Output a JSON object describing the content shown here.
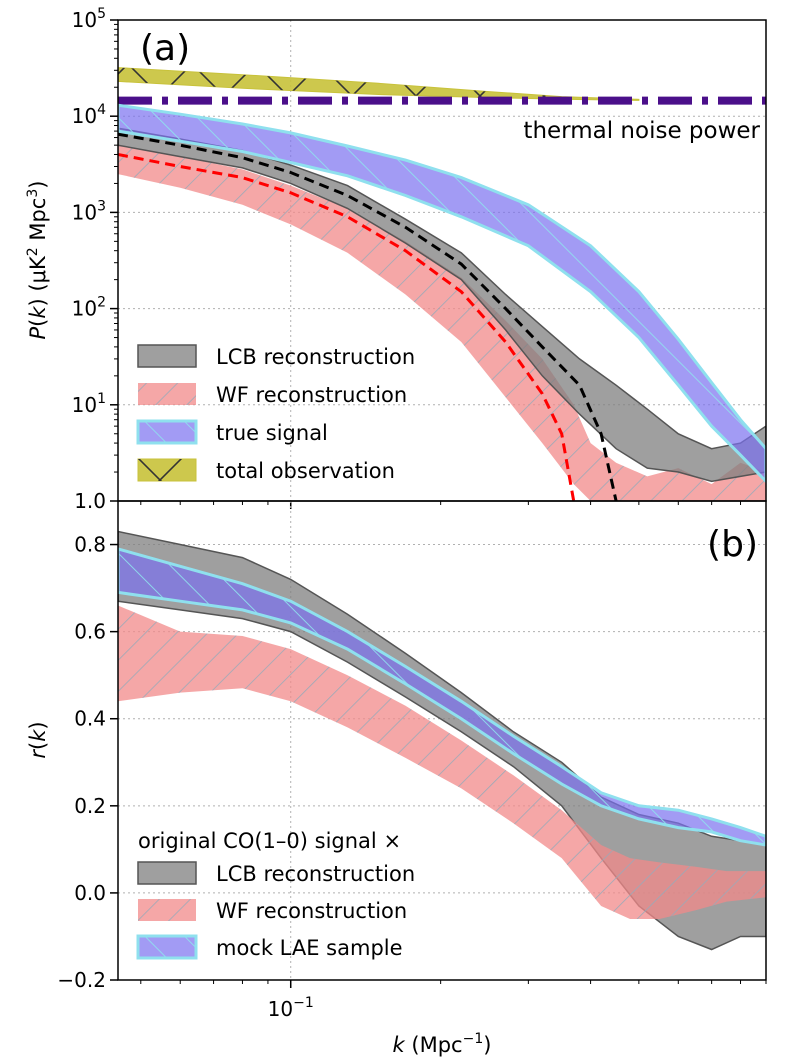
{
  "chart_data": [
    {
      "panel": "(a)",
      "type": "area",
      "ylabel": "P(k) (μK² Mpc³)",
      "ylabel_parts": {
        "italic": "P",
        "k": "k",
        "pre": " (μK",
        "sup1": "2",
        "mid": " Mpc",
        "sup2": "3",
        "post": ")"
      },
      "yscale": "log",
      "ylim": [
        1.0,
        100000
      ],
      "xscale": "log",
      "xlim": [
        0.045,
        0.9
      ],
      "yticks": [
        {
          "value": 1,
          "label": "1.0"
        },
        {
          "value": 10,
          "base": "10",
          "exp": "1"
        },
        {
          "value": 100,
          "base": "10",
          "exp": "2"
        },
        {
          "value": 1000,
          "base": "10",
          "exp": "3"
        },
        {
          "value": 10000,
          "base": "10",
          "exp": "4"
        },
        {
          "value": 100000,
          "base": "10",
          "exp": "5"
        }
      ],
      "annotation": "thermal noise power",
      "noise_level": 14500,
      "legend": [
        {
          "label": "LCB reconstruction",
          "style": "gray"
        },
        {
          "label": "WF reconstruction",
          "style": "red"
        },
        {
          "label": "true signal",
          "style": "blue"
        },
        {
          "label": "total observation",
          "style": "olive"
        }
      ],
      "series": [
        {
          "name": "total observation",
          "k": [
            0.045,
            0.08,
            0.15,
            0.25,
            0.35,
            0.5
          ],
          "lower": [
            23000,
            19500,
            16800,
            15600,
            15000,
            14600
          ],
          "upper": [
            32000,
            27000,
            22000,
            18000,
            16000,
            15000
          ]
        },
        {
          "name": "true signal",
          "k": [
            0.045,
            0.06,
            0.08,
            0.1,
            0.13,
            0.17,
            0.22,
            0.3,
            0.4,
            0.5,
            0.6,
            0.7,
            0.8,
            0.9
          ],
          "lower": [
            7000,
            5500,
            4300,
            3300,
            2400,
            1500,
            900,
            450,
            150,
            50,
            16,
            6,
            3,
            1.6
          ],
          "upper": [
            13000,
            10500,
            8300,
            6700,
            4900,
            3500,
            2300,
            1200,
            450,
            150,
            48,
            17,
            7,
            3.5
          ]
        },
        {
          "name": "LCB reconstruction",
          "k": [
            0.045,
            0.06,
            0.08,
            0.1,
            0.13,
            0.17,
            0.22,
            0.27,
            0.32,
            0.38,
            0.45,
            0.52,
            0.6,
            0.7,
            0.8,
            0.9
          ],
          "lower": [
            5000,
            3800,
            2900,
            2000,
            1100,
            480,
            200,
            60,
            20,
            8,
            3.5,
            2.2,
            2,
            1.6,
            1.8,
            2
          ],
          "upper": [
            7500,
            5800,
            4400,
            3100,
            1900,
            850,
            380,
            140,
            65,
            30,
            16,
            9,
            5,
            3.5,
            4,
            6
          ]
        },
        {
          "name": "LCB median",
          "k": [
            0.045,
            0.06,
            0.08,
            0.1,
            0.13,
            0.17,
            0.22,
            0.27,
            0.32,
            0.38,
            0.42,
            0.45
          ],
          "values": [
            6500,
            5000,
            3700,
            2600,
            1500,
            700,
            290,
            100,
            40,
            16,
            5,
            1
          ]
        },
        {
          "name": "WF reconstruction",
          "k": [
            0.045,
            0.06,
            0.08,
            0.1,
            0.13,
            0.17,
            0.22,
            0.27,
            0.32,
            0.37,
            0.4,
            0.45,
            0.52,
            0.6,
            0.7,
            0.8,
            0.9
          ],
          "lower": [
            2500,
            1800,
            1200,
            750,
            380,
            140,
            45,
            12,
            4,
            1.5,
            1,
            1,
            1,
            1,
            1,
            1,
            1
          ],
          "upper": [
            5000,
            3800,
            2800,
            1900,
            1100,
            500,
            210,
            75,
            30,
            10,
            4,
            2.5,
            1.8,
            2.2,
            1.5,
            2.5,
            2
          ]
        },
        {
          "name": "WF median",
          "k": [
            0.045,
            0.06,
            0.08,
            0.1,
            0.13,
            0.17,
            0.22,
            0.27,
            0.32,
            0.35,
            0.37
          ],
          "values": [
            4000,
            3000,
            2300,
            1600,
            900,
            400,
            150,
            45,
            13,
            5,
            1
          ]
        }
      ]
    },
    {
      "panel": "(b)",
      "type": "area",
      "ylabel": "r(k)",
      "xlabel": "k (Mpc⁻¹)",
      "xlabel_parts": {
        "italic": "k",
        "pre": " (Mpc",
        "sup": "−1",
        "post": ")"
      },
      "xscale": "log",
      "xlim": [
        0.045,
        0.9
      ],
      "ylim": [
        -0.2,
        0.9
      ],
      "yticks": [
        {
          "value": -0.2,
          "label": "−0.2"
        },
        {
          "value": 0.0,
          "label": "0.0"
        },
        {
          "value": 0.2,
          "label": "0.2"
        },
        {
          "value": 0.4,
          "label": "0.4"
        },
        {
          "value": 0.6,
          "label": "0.6"
        },
        {
          "value": 0.8,
          "label": "0.8"
        }
      ],
      "xticks": [
        {
          "value": 0.1,
          "base": "10",
          "exp": "−1"
        }
      ],
      "legend_title": "original CO(1–0) signal ×",
      "legend": [
        {
          "label": "LCB reconstruction",
          "style": "gray"
        },
        {
          "label": "WF reconstruction",
          "style": "red"
        },
        {
          "label": "mock LAE sample",
          "style": "blue"
        }
      ],
      "series": [
        {
          "name": "LCB reconstruction",
          "k": [
            0.045,
            0.06,
            0.08,
            0.1,
            0.13,
            0.17,
            0.22,
            0.28,
            0.35,
            0.42,
            0.5,
            0.6,
            0.7,
            0.8,
            0.9
          ],
          "lower": [
            0.67,
            0.65,
            0.63,
            0.6,
            0.53,
            0.45,
            0.37,
            0.29,
            0.2,
            0.08,
            -0.03,
            -0.1,
            -0.13,
            -0.1,
            -0.1
          ],
          "upper": [
            0.83,
            0.8,
            0.77,
            0.72,
            0.64,
            0.55,
            0.46,
            0.37,
            0.3,
            0.22,
            0.18,
            0.16,
            0.13,
            0.12,
            0.11
          ]
        },
        {
          "name": "WF reconstruction",
          "k": [
            0.045,
            0.06,
            0.08,
            0.1,
            0.13,
            0.17,
            0.22,
            0.28,
            0.35,
            0.42,
            0.48,
            0.55,
            0.65,
            0.75,
            0.9
          ],
          "lower": [
            0.44,
            0.46,
            0.47,
            0.44,
            0.38,
            0.31,
            0.24,
            0.16,
            0.08,
            -0.03,
            -0.06,
            -0.06,
            -0.04,
            -0.02,
            -0.01
          ],
          "upper": [
            0.66,
            0.6,
            0.59,
            0.56,
            0.5,
            0.43,
            0.35,
            0.27,
            0.19,
            0.11,
            0.08,
            0.07,
            0.06,
            0.05,
            0.05
          ]
        },
        {
          "name": "mock LAE sample",
          "k": [
            0.045,
            0.06,
            0.08,
            0.1,
            0.13,
            0.17,
            0.22,
            0.28,
            0.35,
            0.42,
            0.5,
            0.6,
            0.7,
            0.8,
            0.9
          ],
          "lower": [
            0.69,
            0.67,
            0.65,
            0.62,
            0.56,
            0.48,
            0.4,
            0.32,
            0.25,
            0.2,
            0.17,
            0.15,
            0.14,
            0.12,
            0.11
          ],
          "upper": [
            0.79,
            0.75,
            0.71,
            0.67,
            0.6,
            0.52,
            0.44,
            0.36,
            0.29,
            0.23,
            0.2,
            0.19,
            0.17,
            0.15,
            0.13
          ]
        }
      ]
    }
  ],
  "colors": {
    "gray_fill": "#7f7f7f",
    "gray_edge": "#555555",
    "red_fill": "#f28a8a",
    "red_hatch": "#9aaab8",
    "blue_fill": "#7b70f0",
    "blue_edge": "#8fe0ee",
    "olive_fill": "#c8c23a",
    "noise_line": "#4b0f8a",
    "lcb_median": "#000000",
    "wf_median": "#ff0000"
  }
}
